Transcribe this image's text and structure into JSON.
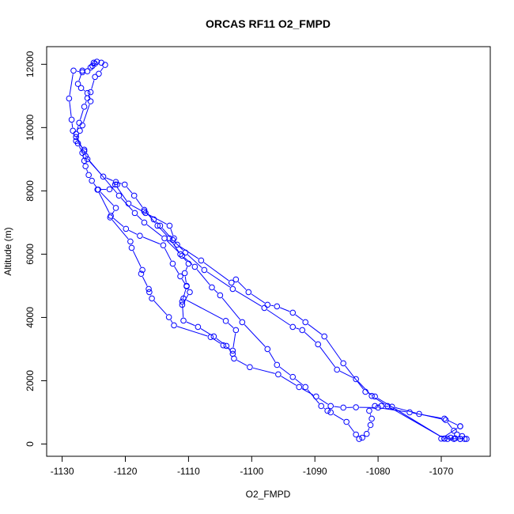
{
  "chart_data": {
    "type": "line",
    "title": "ORCAS RF11 O2_FMPD",
    "xlabel": "O2_FMPD",
    "ylabel": "Altitude (m)",
    "xlim": [
      -1130,
      -1065
    ],
    "ylim": [
      0,
      12000
    ],
    "x_ticks": [
      -1130,
      -1120,
      -1110,
      -1100,
      -1090,
      -1080,
      -1070
    ],
    "y_ticks": [
      0,
      2000,
      4000,
      6000,
      8000,
      10000,
      12000
    ],
    "grid": false,
    "series_color": "#0000ff",
    "marker": "open-circle",
    "series": [
      {
        "values": [
          [
            -1125.5,
            11900
          ],
          [
            -1125.0,
            12050
          ],
          [
            -1124.5,
            12080
          ],
          [
            -1123.8,
            12050
          ],
          [
            -1123.2,
            11980
          ],
          [
            -1124.2,
            11700
          ],
          [
            -1124.8,
            11600
          ],
          [
            -1125.5,
            11120
          ],
          [
            -1126.0,
            10930
          ],
          [
            -1126.5,
            10660
          ],
          [
            -1127.3,
            10150
          ],
          [
            -1127.8,
            9800
          ],
          [
            -1127.5,
            9500
          ],
          [
            -1126.8,
            9200
          ],
          [
            -1126.5,
            8950
          ],
          [
            -1126.3,
            8780
          ],
          [
            -1125.8,
            8500
          ],
          [
            -1125.3,
            8320
          ],
          [
            -1124.3,
            8040
          ],
          [
            -1121.5,
            7460
          ],
          [
            -1122.4,
            7160
          ],
          [
            -1119.2,
            6400
          ],
          [
            -1119.0,
            6200
          ],
          [
            -1117.3,
            5500
          ],
          [
            -1117.5,
            5380
          ],
          [
            -1116.3,
            4900
          ],
          [
            -1116.2,
            4800
          ],
          [
            -1115.8,
            4600
          ],
          [
            -1113.1,
            4010
          ],
          [
            -1112.3,
            3750
          ],
          [
            -1106.5,
            3380
          ],
          [
            -1104.5,
            3120
          ],
          [
            -1103.0,
            2950
          ],
          [
            -1102.5,
            3600
          ],
          [
            -1104.1,
            3890
          ],
          [
            -1110.8,
            4600
          ],
          [
            -1111.0,
            4400
          ],
          [
            -1109.8,
            4800
          ],
          [
            -1110.3,
            5000
          ],
          [
            -1110.6,
            5400
          ],
          [
            -1110.0,
            5700
          ],
          [
            -1111.3,
            6000
          ],
          [
            -1113.0,
            6500
          ],
          [
            -1114.9,
            6900
          ],
          [
            -1117.0,
            7400
          ],
          [
            -1118.6,
            7850
          ],
          [
            -1120.1,
            8200
          ],
          [
            -1121.5,
            8280
          ],
          [
            -1123.5,
            8450
          ],
          [
            -1126.0,
            9000
          ],
          [
            -1126.5,
            9250
          ],
          [
            -1127.8,
            9700
          ],
          [
            -1128.3,
            9900
          ],
          [
            -1128.5,
            10250
          ],
          [
            -1128.9,
            10920
          ],
          [
            -1128.2,
            11800
          ],
          [
            -1126.8,
            11750
          ],
          [
            -1126.0,
            11780
          ],
          [
            -1125.2,
            11950
          ],
          [
            -1124.8,
            12020
          ]
        ]
      },
      {
        "values": [
          [
            -1126.8,
            11800
          ],
          [
            -1127.5,
            11380
          ],
          [
            -1127.0,
            11250
          ],
          [
            -1126.0,
            11090
          ],
          [
            -1125.5,
            10830
          ],
          [
            -1126.8,
            10070
          ],
          [
            -1127.2,
            9900
          ],
          [
            -1127.8,
            9580
          ],
          [
            -1126.5,
            9300
          ],
          [
            -1126.3,
            9100
          ],
          [
            -1121.0,
            7850
          ],
          [
            -1118.5,
            7300
          ],
          [
            -1117.0,
            7000
          ],
          [
            -1113.8,
            6500
          ],
          [
            -1111.0,
            5950
          ],
          [
            -1109.0,
            5600
          ],
          [
            -1106.3,
            4950
          ],
          [
            -1105.0,
            4700
          ],
          [
            -1101.5,
            3850
          ],
          [
            -1097.5,
            3000
          ],
          [
            -1096.0,
            2500
          ],
          [
            -1093.5,
            2120
          ],
          [
            -1091.5,
            1800
          ],
          [
            -1089.0,
            1200
          ],
          [
            -1088.0,
            1050
          ],
          [
            -1087.5,
            1000
          ],
          [
            -1085.0,
            700
          ],
          [
            -1083.5,
            300
          ],
          [
            -1083.0,
            160
          ],
          [
            -1082.5,
            200
          ],
          [
            -1081.8,
            320
          ],
          [
            -1081.2,
            600
          ],
          [
            -1081.0,
            800
          ],
          [
            -1081.4,
            1050
          ],
          [
            -1080.5,
            1200
          ],
          [
            -1079.5,
            1200
          ],
          [
            -1077.8,
            1180
          ],
          [
            -1073.5,
            950
          ],
          [
            -1069.3,
            760
          ],
          [
            -1068.0,
            420
          ],
          [
            -1067.5,
            300
          ],
          [
            -1066.7,
            250
          ],
          [
            -1066.0,
            160
          ],
          [
            -1067.0,
            160
          ],
          [
            -1068.0,
            160
          ],
          [
            -1069.0,
            160
          ],
          [
            -1069.5,
            170
          ]
        ]
      },
      {
        "values": [
          [
            -1069.5,
            170
          ],
          [
            -1080.5,
            1500
          ],
          [
            -1082.0,
            1650
          ],
          [
            -1085.5,
            2550
          ],
          [
            -1088.5,
            3400
          ],
          [
            -1091.5,
            3850
          ],
          [
            -1093.5,
            4150
          ],
          [
            -1096.0,
            4350
          ],
          [
            -1097.5,
            4400
          ],
          [
            -1100.5,
            4800
          ],
          [
            -1102.5,
            5200
          ],
          [
            -1103.2,
            5100
          ],
          [
            -1108.0,
            5800
          ],
          [
            -1111.8,
            6300
          ],
          [
            -1112.3,
            6500
          ],
          [
            -1113.0,
            6900
          ],
          [
            -1116.8,
            7300
          ],
          [
            -1119.5,
            7600
          ],
          [
            -1121.6,
            8200
          ],
          [
            -1121.3,
            8200
          ],
          [
            -1122.5,
            8050
          ],
          [
            -1124.4,
            8040
          ]
        ]
      },
      {
        "values": [
          [
            -1124.4,
            8040
          ],
          [
            -1122.3,
            7210
          ],
          [
            -1119.9,
            6800
          ],
          [
            -1117.7,
            6580
          ],
          [
            -1114.0,
            6280
          ],
          [
            -1112.5,
            5700
          ],
          [
            -1111.3,
            5300
          ],
          [
            -1110.3,
            4980
          ],
          [
            -1111.0,
            4500
          ],
          [
            -1110.8,
            3900
          ],
          [
            -1108.5,
            3700
          ],
          [
            -1106.0,
            3400
          ],
          [
            -1104.0,
            3100
          ],
          [
            -1103.0,
            2850
          ],
          [
            -1102.8,
            2700
          ],
          [
            -1100.3,
            2430
          ],
          [
            -1095.8,
            2200
          ],
          [
            -1092.5,
            1800
          ],
          [
            -1089.8,
            1500
          ],
          [
            -1087.5,
            1200
          ],
          [
            -1085.5,
            1150
          ],
          [
            -1083.5,
            1160
          ],
          [
            -1080.0,
            1150
          ],
          [
            -1075.0,
            1000
          ],
          [
            -1069.5,
            800
          ],
          [
            -1067.0,
            560
          ]
        ]
      },
      {
        "values": [
          [
            -1067.0,
            560
          ],
          [
            -1070.0,
            170
          ],
          [
            -1068.5,
            200
          ],
          [
            -1067.8,
            180
          ],
          [
            -1067.0,
            160
          ],
          [
            -1066.3,
            160
          ],
          [
            -1069.5,
            170
          ],
          [
            -1078.5,
            1200
          ],
          [
            -1081.0,
            1520
          ],
          [
            -1083.5,
            2050
          ],
          [
            -1086.5,
            2350
          ],
          [
            -1089.5,
            3150
          ],
          [
            -1092.0,
            3600
          ],
          [
            -1093.5,
            3700
          ],
          [
            -1098.0,
            4300
          ],
          [
            -1103.0,
            4900
          ],
          [
            -1107.5,
            5500
          ],
          [
            -1110.5,
            6050
          ],
          [
            -1112.5,
            6450
          ],
          [
            -1114.5,
            6900
          ],
          [
            -1115.5,
            7100
          ],
          [
            -1117.0,
            7350
          ]
        ]
      }
    ]
  }
}
